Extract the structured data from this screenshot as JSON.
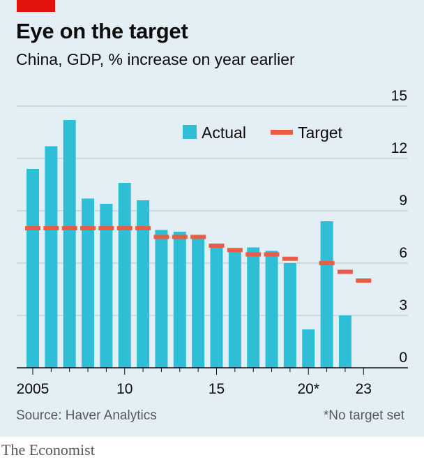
{
  "header": {
    "title": "Eye on the target",
    "subtitle": "China, GDP, % increase on year earlier"
  },
  "footer": {
    "source": "Source: Haver Analytics",
    "footnote": "*No target set",
    "brand": "The Economist"
  },
  "colors": {
    "accent_red": "#e3120b",
    "actual": "#2ebfd6",
    "target": "#ea5d45",
    "background": "#e3eef5",
    "grid": "#b7c4cd"
  },
  "chart_data": {
    "type": "bar",
    "title": "Eye on the target",
    "subtitle": "China, GDP, % increase on year earlier",
    "xlabel": "",
    "ylabel": "",
    "ylim": [
      0,
      15
    ],
    "yticks": [
      0,
      3,
      6,
      9,
      12,
      15
    ],
    "y_axis_side": "right",
    "grid": true,
    "legend_position": "top-center",
    "x_tick_labels": [
      {
        "year": 2005,
        "label": "2005"
      },
      {
        "year": 2010,
        "label": "10"
      },
      {
        "year": 2015,
        "label": "15"
      },
      {
        "year": 2020,
        "label": "20*"
      },
      {
        "year": 2023,
        "label": "23"
      }
    ],
    "years": [
      2005,
      2006,
      2007,
      2008,
      2009,
      2010,
      2011,
      2012,
      2013,
      2014,
      2015,
      2016,
      2017,
      2018,
      2019,
      2020,
      2021,
      2022,
      2023
    ],
    "series": [
      {
        "name": "Actual",
        "style": "bar",
        "values": [
          11.4,
          12.7,
          14.2,
          9.7,
          9.4,
          10.6,
          9.6,
          7.9,
          7.8,
          7.4,
          7.0,
          6.8,
          6.9,
          6.7,
          6.0,
          2.2,
          8.4,
          3.0,
          null
        ]
      },
      {
        "name": "Target",
        "style": "dash",
        "values": [
          8.0,
          8.0,
          8.0,
          8.0,
          8.0,
          8.0,
          8.0,
          7.5,
          7.5,
          7.5,
          7.0,
          6.75,
          6.5,
          6.5,
          6.25,
          null,
          6.0,
          5.5,
          5.0
        ]
      }
    ]
  }
}
